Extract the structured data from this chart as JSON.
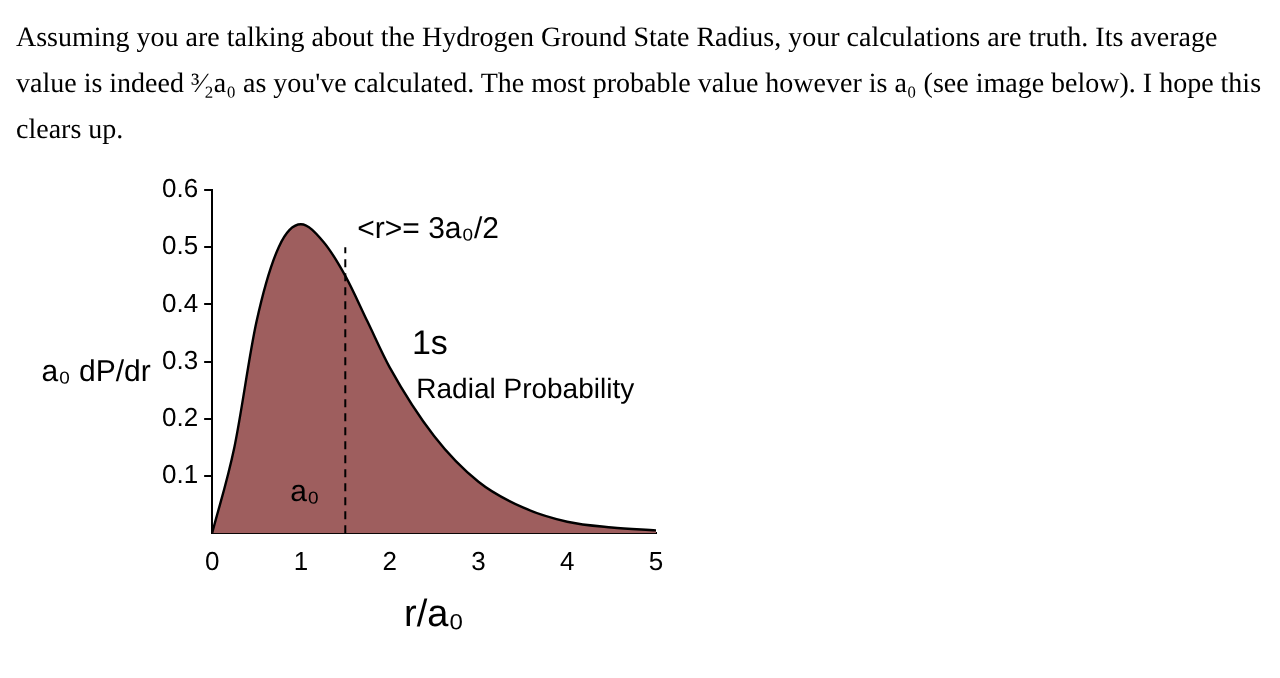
{
  "chart_data": {
    "type": "area",
    "title": "Assuming you are talking about the Hydrogen Ground State Radius, your calculations are truth. Its average value is indeed ³⁄₂a₀ as you've calculated. The most probable value however is a₀ (see image below). I hope this clears up.",
    "xlabel": "r/a₀",
    "ylabel": "a₀ dP/dr",
    "x": [
      0,
      0.25,
      0.5,
      0.75,
      1,
      1.25,
      1.5,
      1.75,
      2,
      2.5,
      3,
      3.5,
      4,
      4.5,
      5
    ],
    "series": [
      {
        "color": "#9e5e5e",
        "values": [
          0,
          0.15,
          0.37,
          0.5,
          0.54,
          0.51,
          0.45,
          0.37,
          0.29,
          0.17,
          0.09,
          0.045,
          0.02,
          0.01,
          0.005
        ]
      }
    ],
    "xlim": [
      0,
      5
    ],
    "xticks": [
      0,
      1,
      2,
      3,
      4,
      5
    ],
    "ylim": [
      0,
      0.6
    ],
    "yticks": [
      0.1,
      0.2,
      0.3,
      0.4,
      0.5,
      0.6
    ],
    "ref_lines": [
      {
        "axis": "x",
        "value": 1.5,
        "label": "<r>= 3a₀/2",
        "line_style": "dashed"
      }
    ],
    "annotations": [
      "1s",
      "Radial Probability",
      "a₀"
    ],
    "grid": false,
    "legend": false
  }
}
